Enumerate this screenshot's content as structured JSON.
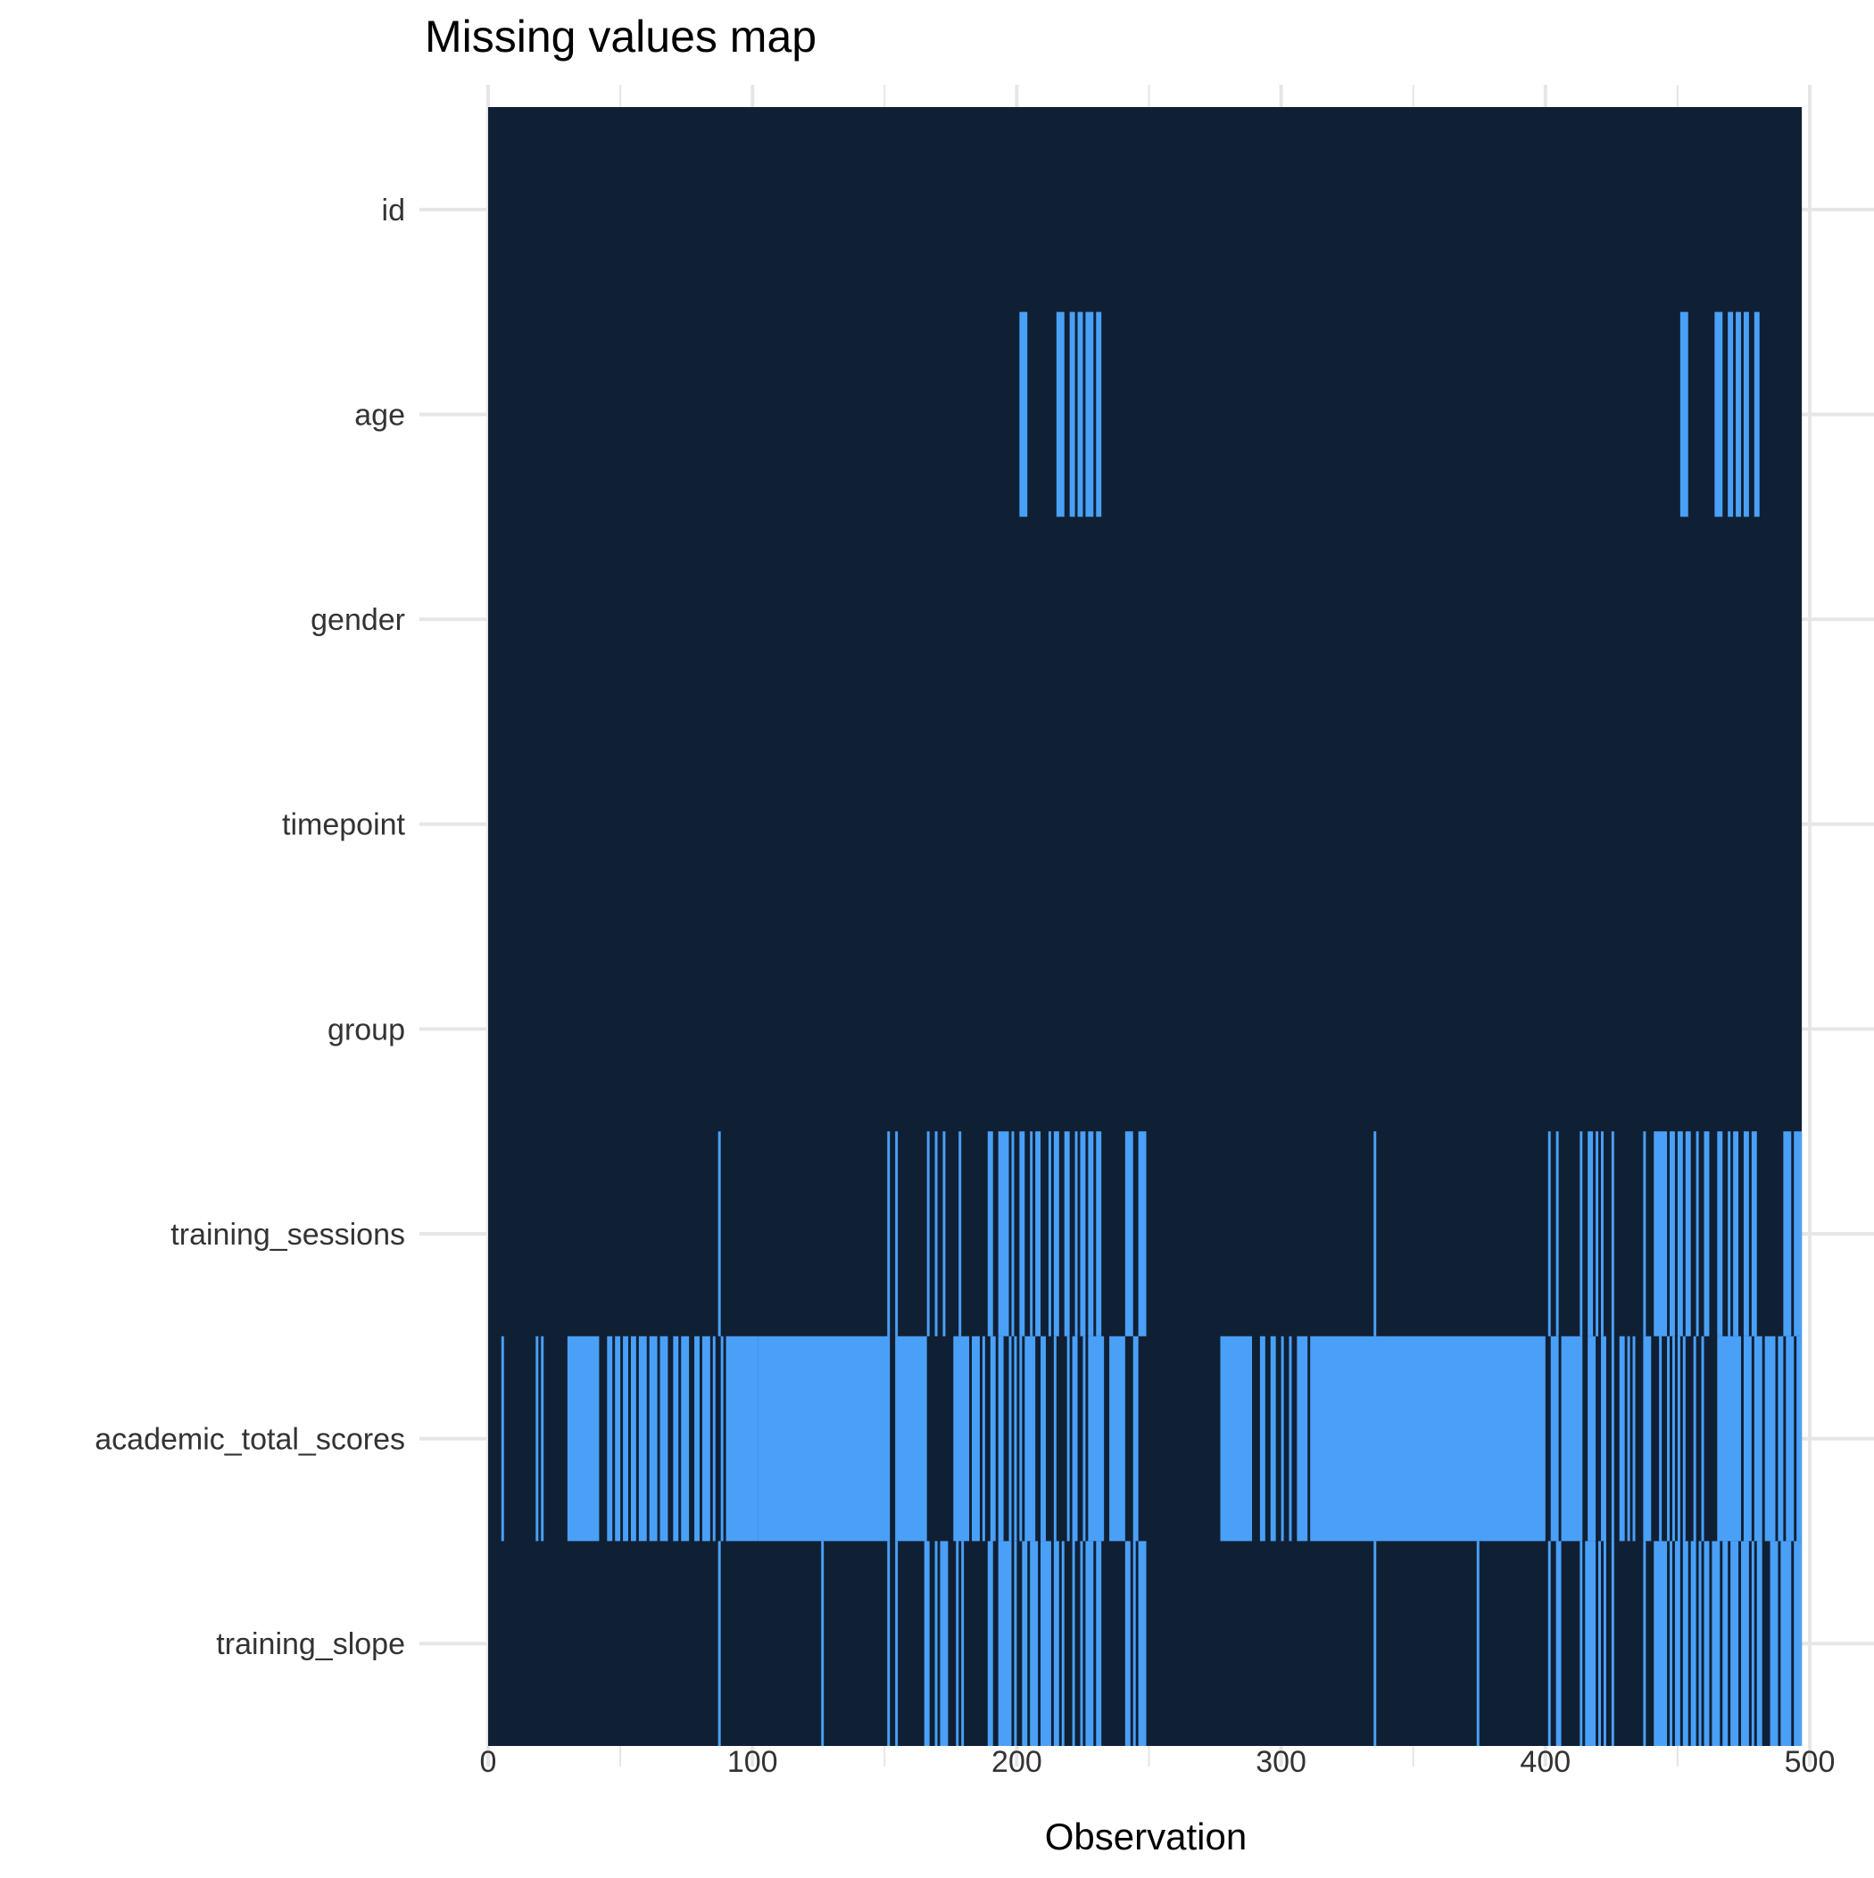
{
  "chart_data": {
    "type": "heatmap",
    "title": "Missing values map",
    "xlabel": "Observation",
    "ylabel": "",
    "xlim": [
      0,
      500
    ],
    "x_ticks": [
      0,
      100,
      200,
      300,
      400,
      500
    ],
    "n_observations": 497,
    "grid": true,
    "legend": "none",
    "colors": {
      "present": "#102034",
      "missing": "#4aa0f7",
      "grid": "#e6e6e6",
      "text": "#333333"
    },
    "variables": [
      "id",
      "age",
      "gender",
      "timepoint",
      "group",
      "training_sessions",
      "academic_total_scores",
      "training_slope"
    ],
    "missing": {
      "id": [],
      "age": [
        [
          201,
          204
        ],
        [
          215,
          218
        ],
        [
          220,
          222
        ],
        [
          223,
          225
        ],
        [
          226,
          229
        ],
        [
          230,
          232
        ],
        [
          451,
          454
        ],
        [
          464,
          467
        ],
        [
          469,
          471
        ],
        [
          472,
          474
        ],
        [
          475,
          477
        ],
        [
          479,
          481
        ]
      ],
      "gender": [],
      "timepoint": [],
      "group": [],
      "training_sessions": [
        [
          87,
          88
        ],
        [
          151,
          152
        ],
        [
          154,
          155
        ],
        [
          166,
          167
        ],
        [
          169,
          170
        ],
        [
          172,
          173
        ],
        [
          178,
          179
        ],
        [
          189,
          191
        ],
        [
          193,
          197
        ],
        [
          198,
          199
        ],
        [
          201,
          203
        ],
        [
          205,
          206
        ],
        [
          207,
          209
        ],
        [
          212,
          213
        ],
        [
          214,
          216
        ],
        [
          218,
          220
        ],
        [
          222,
          223
        ],
        [
          224,
          226
        ],
        [
          227,
          229
        ],
        [
          230,
          232
        ],
        [
          241,
          244
        ],
        [
          246,
          249
        ],
        [
          335,
          336
        ],
        [
          401,
          402
        ],
        [
          404,
          405
        ],
        [
          413,
          414
        ],
        [
          416,
          418
        ],
        [
          419,
          420
        ],
        [
          421,
          422
        ],
        [
          425,
          426
        ],
        [
          437,
          438
        ],
        [
          441,
          446
        ],
        [
          447,
          449
        ],
        [
          450,
          452
        ],
        [
          453,
          455
        ],
        [
          457,
          458
        ],
        [
          460,
          462
        ],
        [
          465,
          467
        ],
        [
          469,
          470
        ],
        [
          471,
          473
        ],
        [
          475,
          477
        ],
        [
          478,
          480
        ],
        [
          490,
          493
        ],
        [
          494,
          497
        ]
      ],
      "academic_total_scores": [
        [
          5,
          6
        ],
        [
          18,
          19
        ],
        [
          20,
          21
        ],
        [
          30,
          42
        ],
        [
          45,
          47
        ],
        [
          48,
          50
        ],
        [
          51,
          53
        ],
        [
          54,
          56
        ],
        [
          57,
          60
        ],
        [
          61,
          64
        ],
        [
          65,
          68
        ],
        [
          70,
          72
        ],
        [
          73,
          76
        ],
        [
          78,
          80
        ],
        [
          81,
          84
        ],
        [
          85,
          86
        ],
        [
          88,
          89
        ],
        [
          90,
          102
        ],
        [
          102,
          152
        ],
        [
          154,
          166
        ],
        [
          176,
          182
        ],
        [
          183,
          186
        ],
        [
          187,
          188
        ],
        [
          190,
          192
        ],
        [
          193,
          195
        ],
        [
          197,
          198
        ],
        [
          199,
          200
        ],
        [
          201,
          202
        ],
        [
          203,
          207
        ],
        [
          209,
          211
        ],
        [
          214,
          215
        ],
        [
          219,
          220
        ],
        [
          221,
          223
        ],
        [
          225,
          226
        ],
        [
          227,
          233
        ],
        [
          235,
          241
        ],
        [
          244,
          246
        ],
        [
          277,
          289
        ],
        [
          292,
          294
        ],
        [
          296,
          298
        ],
        [
          300,
          301
        ],
        [
          303,
          304
        ],
        [
          306,
          310
        ],
        [
          311,
          400
        ],
        [
          402,
          405
        ],
        [
          406,
          414
        ],
        [
          416,
          419
        ],
        [
          421,
          423
        ],
        [
          425,
          426
        ],
        [
          428,
          430
        ],
        [
          431,
          432
        ],
        [
          433,
          434
        ],
        [
          437,
          440
        ],
        [
          443,
          444
        ],
        [
          446,
          447
        ],
        [
          448,
          449
        ],
        [
          450,
          451
        ],
        [
          452,
          453
        ],
        [
          456,
          457
        ],
        [
          459,
          460
        ],
        [
          465,
          474
        ],
        [
          475,
          478
        ],
        [
          479,
          482
        ],
        [
          483,
          487
        ],
        [
          488,
          490
        ],
        [
          491,
          494
        ],
        [
          495,
          497
        ]
      ],
      "training_slope": [
        [
          87,
          88
        ],
        [
          126,
          127
        ],
        [
          151,
          152
        ],
        [
          154,
          155
        ],
        [
          165,
          167
        ],
        [
          169,
          170
        ],
        [
          171,
          174
        ],
        [
          177,
          178
        ],
        [
          179,
          180
        ],
        [
          189,
          191
        ],
        [
          193,
          198
        ],
        [
          199,
          200
        ],
        [
          202,
          204
        ],
        [
          205,
          208
        ],
        [
          209,
          213
        ],
        [
          214,
          216
        ],
        [
          217,
          218
        ],
        [
          221,
          222
        ],
        [
          224,
          225
        ],
        [
          226,
          229
        ],
        [
          230,
          232
        ],
        [
          241,
          243
        ],
        [
          244,
          245
        ],
        [
          246,
          249
        ],
        [
          335,
          336
        ],
        [
          374,
          375
        ],
        [
          401,
          402
        ],
        [
          404,
          406
        ],
        [
          413,
          414
        ],
        [
          415,
          419
        ],
        [
          420,
          421
        ],
        [
          422,
          423
        ],
        [
          425,
          426
        ],
        [
          437,
          438
        ],
        [
          441,
          446
        ],
        [
          447,
          448
        ],
        [
          449,
          451
        ],
        [
          452,
          454
        ],
        [
          455,
          457
        ],
        [
          458,
          459
        ],
        [
          460,
          462
        ],
        [
          463,
          466
        ],
        [
          467,
          469
        ],
        [
          470,
          473
        ],
        [
          474,
          477
        ],
        [
          478,
          479
        ],
        [
          480,
          482
        ],
        [
          485,
          488
        ],
        [
          489,
          493
        ],
        [
          494,
          497
        ]
      ]
    }
  }
}
